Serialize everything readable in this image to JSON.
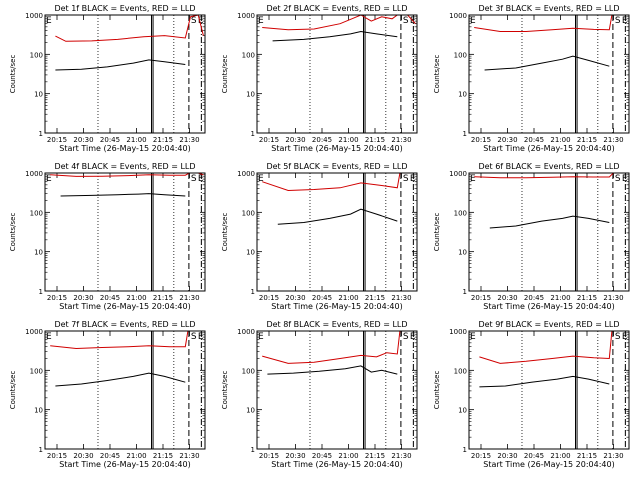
{
  "chart_data": {
    "type": "line",
    "ylabel": "Counts/sec",
    "xlabel": "Start Time (26-May-15 20:04:40)",
    "yscale": "log",
    "ylim": [
      1,
      1000
    ],
    "y_ticks": [
      {
        "v": 1,
        "label": "1"
      },
      {
        "v": 10,
        "label": "10"
      },
      {
        "v": 100,
        "label": "100"
      },
      {
        "v": 1000,
        "label": "1000"
      }
    ],
    "x_range_sec": [
      0,
      3080
    ],
    "x_ticks": [
      {
        "t": 635,
        "label": "20:15"
      },
      {
        "t": 1535,
        "label": "20:30"
      },
      {
        "t": 2435,
        "label": "20:45"
      },
      {
        "t": 3335,
        "label": "21:00"
      },
      {
        "t": 4235,
        "label": "21:15"
      },
      {
        "t": 5135,
        "label": "21:30"
      }
    ],
    "series_colors": {
      "events": "#000000",
      "lld": "#d00000"
    },
    "markers": {
      "dotted_lines_sec": [
        1020,
        2480
      ],
      "solid_lines_sec": [
        2050,
        2080
      ],
      "dashed_lines_sec": [
        2770
      ],
      "dashdot_lines_sec": [
        3010
      ],
      "S_label": "S",
      "E_label": "E",
      "S_sec": 2770,
      "E_sec": 2905
    },
    "panels": [
      {
        "title": "Det 1f BLACK = Events, RED = LLD",
        "lld": [
          [
            200,
            290
          ],
          [
            400,
            215
          ],
          [
            900,
            220
          ],
          [
            1400,
            240
          ],
          [
            1900,
            280
          ],
          [
            2300,
            300
          ],
          [
            2700,
            260
          ],
          [
            2800,
            900
          ],
          [
            2950,
            1000
          ],
          [
            3050,
            300
          ]
        ],
        "events": [
          [
            200,
            40
          ],
          [
            700,
            42
          ],
          [
            1200,
            48
          ],
          [
            1700,
            60
          ],
          [
            2000,
            72
          ],
          [
            2300,
            65
          ],
          [
            2700,
            55
          ]
        ]
      },
      {
        "title": "Det 2f BLACK = Events, RED = LLD",
        "lld": [
          [
            100,
            480
          ],
          [
            600,
            420
          ],
          [
            1100,
            440
          ],
          [
            1600,
            600
          ],
          [
            2000,
            1000
          ],
          [
            2200,
            700
          ],
          [
            2400,
            900
          ],
          [
            2600,
            800
          ],
          [
            2700,
            1000
          ],
          [
            2900,
            1000
          ],
          [
            3050,
            600
          ]
        ],
        "events": [
          [
            300,
            220
          ],
          [
            900,
            240
          ],
          [
            1400,
            280
          ],
          [
            1800,
            330
          ],
          [
            2000,
            380
          ],
          [
            2300,
            330
          ],
          [
            2700,
            280
          ]
        ]
      },
      {
        "title": "Det 3f BLACK = Events, RED = LLD",
        "lld": [
          [
            100,
            480
          ],
          [
            600,
            380
          ],
          [
            1100,
            380
          ],
          [
            1600,
            420
          ],
          [
            2000,
            460
          ],
          [
            2400,
            430
          ],
          [
            2700,
            420
          ],
          [
            2750,
            1000
          ],
          [
            3050,
            1000
          ]
        ],
        "events": [
          [
            300,
            40
          ],
          [
            900,
            45
          ],
          [
            1400,
            60
          ],
          [
            1800,
            75
          ],
          [
            2000,
            90
          ],
          [
            2300,
            70
          ],
          [
            2700,
            50
          ]
        ]
      },
      {
        "title": "Det 4f BLACK = Events, RED = LLD",
        "lld": [
          [
            100,
            900
          ],
          [
            600,
            820
          ],
          [
            1100,
            830
          ],
          [
            1600,
            860
          ],
          [
            2000,
            900
          ],
          [
            2400,
            880
          ],
          [
            2700,
            880
          ],
          [
            2780,
            1000
          ],
          [
            2950,
            1000
          ],
          [
            3050,
            900
          ]
        ],
        "events": [
          [
            300,
            260
          ],
          [
            900,
            270
          ],
          [
            1400,
            280
          ],
          [
            1800,
            290
          ],
          [
            2000,
            300
          ],
          [
            2300,
            280
          ],
          [
            2700,
            260
          ]
        ]
      },
      {
        "title": "Det 5f BLACK = Events, RED = LLD",
        "lld": [
          [
            100,
            600
          ],
          [
            600,
            360
          ],
          [
            1100,
            380
          ],
          [
            1600,
            420
          ],
          [
            2000,
            560
          ],
          [
            2400,
            480
          ],
          [
            2700,
            420
          ],
          [
            2750,
            1000
          ],
          [
            3050,
            1000
          ]
        ],
        "events": [
          [
            400,
            50
          ],
          [
            900,
            55
          ],
          [
            1400,
            70
          ],
          [
            1800,
            90
          ],
          [
            2000,
            120
          ],
          [
            2300,
            90
          ],
          [
            2700,
            60
          ]
        ]
      },
      {
        "title": "Det 6f BLACK = Events, RED = LLD",
        "lld": [
          [
            100,
            800
          ],
          [
            600,
            760
          ],
          [
            1100,
            760
          ],
          [
            1600,
            780
          ],
          [
            2000,
            800
          ],
          [
            2400,
            790
          ],
          [
            2700,
            790
          ],
          [
            2780,
            1000
          ],
          [
            3050,
            1000
          ]
        ],
        "events": [
          [
            400,
            40
          ],
          [
            900,
            45
          ],
          [
            1400,
            60
          ],
          [
            1800,
            70
          ],
          [
            2000,
            80
          ],
          [
            2300,
            70
          ],
          [
            2700,
            55
          ]
        ]
      },
      {
        "title": "Det 7f BLACK = Events, RED = LLD",
        "lld": [
          [
            100,
            420
          ],
          [
            600,
            360
          ],
          [
            1100,
            380
          ],
          [
            1600,
            400
          ],
          [
            2000,
            420
          ],
          [
            2400,
            400
          ],
          [
            2700,
            400
          ],
          [
            2750,
            1000
          ],
          [
            3050,
            1000
          ]
        ],
        "events": [
          [
            200,
            40
          ],
          [
            700,
            45
          ],
          [
            1200,
            55
          ],
          [
            1700,
            70
          ],
          [
            2000,
            85
          ],
          [
            2300,
            70
          ],
          [
            2700,
            50
          ]
        ]
      },
      {
        "title": "Det 8f BLACK = Events, RED = LLD",
        "lld": [
          [
            100,
            230
          ],
          [
            600,
            150
          ],
          [
            1100,
            160
          ],
          [
            1600,
            200
          ],
          [
            2000,
            240
          ],
          [
            2300,
            220
          ],
          [
            2500,
            280
          ],
          [
            2700,
            260
          ],
          [
            2750,
            1000
          ],
          [
            3050,
            1000
          ]
        ],
        "events": [
          [
            200,
            80
          ],
          [
            700,
            85
          ],
          [
            1200,
            95
          ],
          [
            1700,
            110
          ],
          [
            2000,
            130
          ],
          [
            2200,
            90
          ],
          [
            2400,
            100
          ],
          [
            2700,
            80
          ]
        ]
      },
      {
        "title": "Det 9f BLACK = Events, RED = LLD",
        "lld": [
          [
            200,
            220
          ],
          [
            600,
            150
          ],
          [
            1100,
            170
          ],
          [
            1600,
            200
          ],
          [
            2000,
            230
          ],
          [
            2400,
            210
          ],
          [
            2700,
            200
          ],
          [
            2750,
            1000
          ],
          [
            3050,
            1000
          ]
        ],
        "events": [
          [
            200,
            38
          ],
          [
            700,
            40
          ],
          [
            1200,
            50
          ],
          [
            1700,
            60
          ],
          [
            2000,
            70
          ],
          [
            2300,
            60
          ],
          [
            2700,
            45
          ]
        ]
      }
    ]
  }
}
